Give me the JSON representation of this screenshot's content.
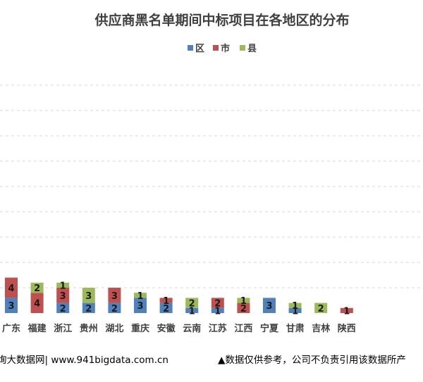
{
  "chart_data": {
    "type": "bar",
    "stacked": true,
    "title": "供应商黑名单期间中标项目在各地区的分布",
    "legend_position": "top",
    "grid": true,
    "ylim": [
      0,
      10
    ],
    "categories": [
      "广东",
      "福建",
      "浙江",
      "贵州",
      "湖北",
      "重庆",
      "安徽",
      "云南",
      "江苏",
      "江西",
      "宁夏",
      "甘肃",
      "吉林",
      "陕西"
    ],
    "series": [
      {
        "name": "区",
        "color": "#4f81bd",
        "values": [
          3,
          0,
          2,
          2,
          2,
          3,
          2,
          1,
          1,
          0,
          3,
          1,
          0,
          0
        ]
      },
      {
        "name": "市",
        "color": "#c0504d",
        "values": [
          4,
          4,
          3,
          0,
          3,
          0,
          1,
          0,
          2,
          2,
          0,
          0,
          0,
          1
        ]
      },
      {
        "name": "县",
        "color": "#9bbb59",
        "values": [
          0,
          2,
          1,
          3,
          0,
          1,
          0,
          2,
          0,
          1,
          0,
          1,
          2,
          0
        ]
      }
    ]
  },
  "footer": {
    "left": "询大数据网| www.941bigdata.com.cn",
    "right": "▲数据仅供参考，公司不负责引用该数据所产"
  }
}
